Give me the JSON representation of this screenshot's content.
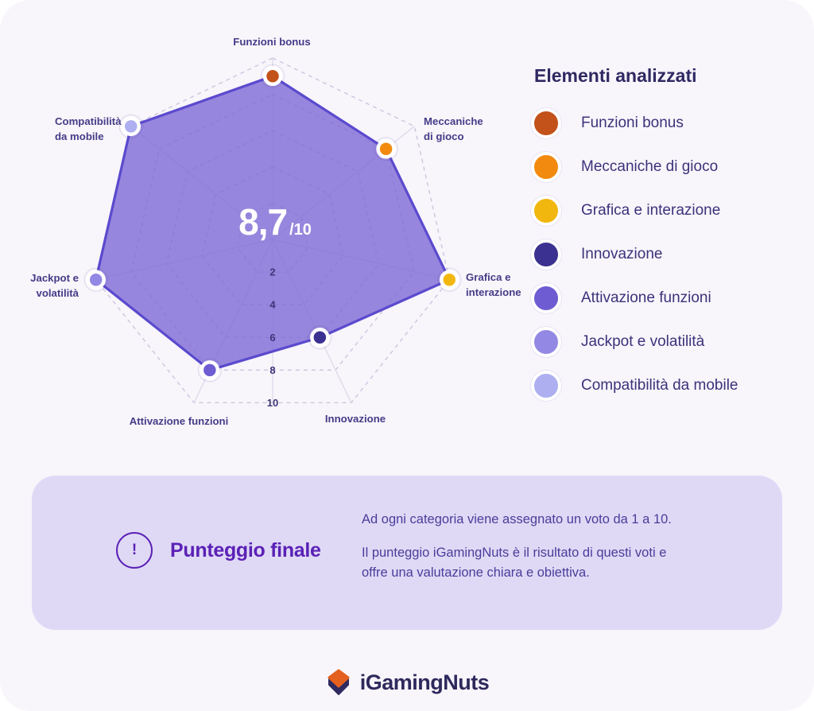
{
  "chart_data": {
    "type": "radar",
    "score": {
      "display": "8,7",
      "suffix": "/10"
    },
    "axis_min": 0,
    "axis_max": 10,
    "axis_ticks": [
      2,
      4,
      6,
      8,
      10
    ],
    "categories": [
      {
        "label": "Funzioni bonus",
        "chart_lines": [
          "Funzioni bonus"
        ],
        "value": 9,
        "color": "#C2511A"
      },
      {
        "label": "Meccaniche di gioco",
        "chart_lines": [
          "Meccaniche",
          "di gioco"
        ],
        "value": 8,
        "color": "#F18A0E"
      },
      {
        "label": "Grafica e interazione",
        "chart_lines": [
          "Grafica e",
          "interazione"
        ],
        "value": 10,
        "color": "#F2B70E"
      },
      {
        "label": "Innovazione",
        "chart_lines": [
          "Innovazione"
        ],
        "value": 6,
        "color": "#3A3191"
      },
      {
        "label": "Attivazione funzioni",
        "chart_lines": [
          "Attivazione funzioni"
        ],
        "value": 8,
        "color": "#6E5CD3"
      },
      {
        "label": "Jackpot e volatilità",
        "chart_lines": [
          "Jackpot e",
          "volatilità"
        ],
        "value": 10,
        "color": "#9388E3"
      },
      {
        "label": "Compatibilità da mobile",
        "chart_lines": [
          "Compatibilità",
          "da mobile"
        ],
        "value": 10,
        "color": "#ADAFF0"
      }
    ],
    "style": {
      "fill": "#7E6AD6",
      "fill_opacity": 0.8,
      "stroke": "#5A4ACE",
      "grid_spoke": "#DCD7E8",
      "grid_ring": "#C9C3DC",
      "label_color": "#453C87",
      "tick_color": "#3E3679"
    },
    "legend_position": "right",
    "grid": true
  },
  "legend": {
    "title": "Elementi analizzati"
  },
  "score_panel": {
    "icon": "!",
    "title": "Punteggio finale",
    "paragraphs": [
      "Ad ogni categoria viene assegnato un voto da 1 a 10.",
      "Il punteggio iGamingNuts è il risultato di questi voti e offre una valutazione chiara e obiettiva."
    ]
  },
  "footer": {
    "brand": "iGamingNuts"
  }
}
